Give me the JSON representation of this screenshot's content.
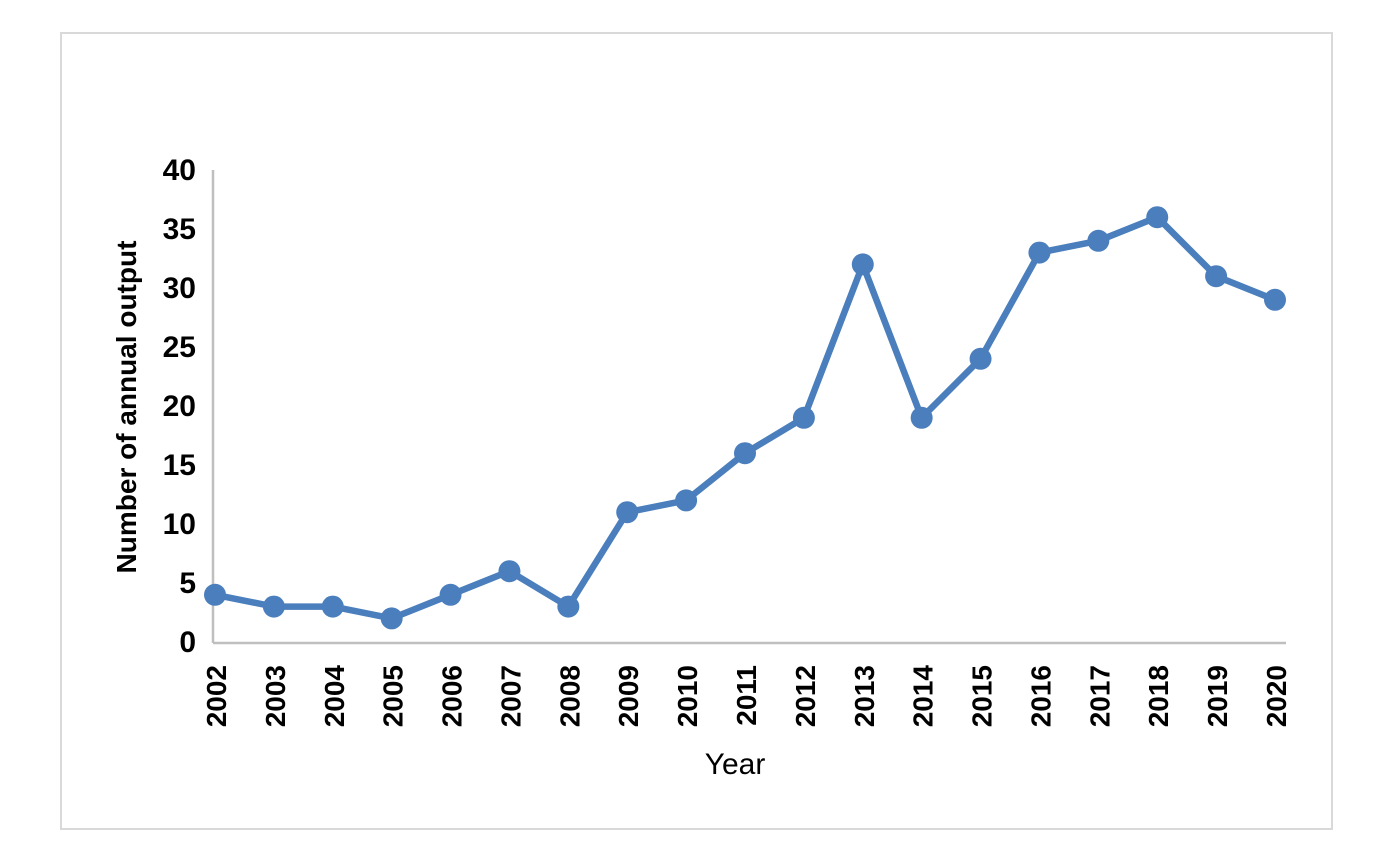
{
  "chart_data": {
    "type": "line",
    "title": "",
    "xlabel": "Year",
    "ylabel": "Number of annual output",
    "categories": [
      "2002",
      "2003",
      "2004",
      "2005",
      "2006",
      "2007",
      "2008",
      "2009",
      "2010",
      "2011",
      "2012",
      "2013",
      "2014",
      "2015",
      "2016",
      "2017",
      "2018",
      "2019",
      "2020"
    ],
    "values": [
      4,
      3,
      3,
      2,
      4,
      6,
      3,
      11,
      12,
      16,
      19,
      32,
      19,
      24,
      33,
      34,
      36,
      31,
      29
    ],
    "ylim": [
      0,
      40
    ],
    "ytick_step": 5,
    "yticks": [
      0,
      5,
      10,
      15,
      20,
      25,
      30,
      35,
      40
    ],
    "grid": false,
    "legend_position": "none",
    "marker": "circle",
    "colors": {
      "series_line": "#4a7ebc",
      "marker_fill": "#4a7ebc",
      "axis_line": "#bfbfbf",
      "frame_border": "#d9d9d9",
      "text": "#000000",
      "background": "#ffffff"
    }
  }
}
